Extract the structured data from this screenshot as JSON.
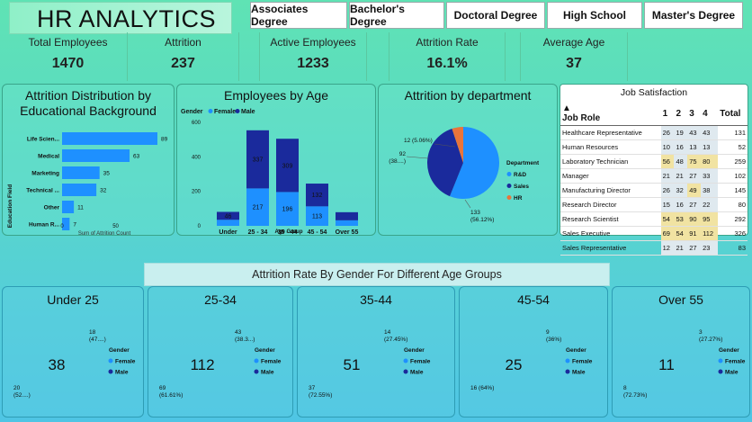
{
  "header": {
    "title": "HR ANALYTICS"
  },
  "slicers": [
    "Associates Degree",
    "Bachelor's Degree",
    "Doctoral Degree",
    "High School",
    "Master's Degree"
  ],
  "kpis": [
    {
      "label": "Total Employees",
      "value": "1470"
    },
    {
      "label": "Attrition",
      "value": "237"
    },
    {
      "label": "Active Employees",
      "value": "1233"
    },
    {
      "label": "Attrition Rate",
      "value": "16.1%"
    },
    {
      "label": "Average Age",
      "value": "37"
    }
  ],
  "edu_title": "Attrition Distribution by Educational Background",
  "edu_ylabel": "Education Field",
  "edu_xlabel": "Sum of Attrition Count",
  "age_title": "Employees by Age",
  "age_legend": {
    "title": "Gender",
    "female": "Female",
    "male": "Male"
  },
  "age_xlabel": "Age Group",
  "dept_title": "Attrition by department",
  "dept_legend": {
    "title": "Department",
    "items": [
      "R&D",
      "Sales",
      "HR"
    ]
  },
  "job": {
    "title": "Job Satisfaction",
    "headers": [
      "Job Role",
      "1",
      "2",
      "3",
      "4",
      "Total"
    ],
    "rows": [
      [
        "Healthcare Representative",
        "26",
        "19",
        "43",
        "43",
        "131"
      ],
      [
        "Human Resources",
        "10",
        "16",
        "13",
        "13",
        "52"
      ],
      [
        "Laboratory Technician",
        "56",
        "48",
        "75",
        "80",
        "259"
      ],
      [
        "Manager",
        "21",
        "21",
        "27",
        "33",
        "102"
      ],
      [
        "Manufacturing Director",
        "26",
        "32",
        "49",
        "38",
        "145"
      ],
      [
        "Research Director",
        "15",
        "16",
        "27",
        "22",
        "80"
      ],
      [
        "Research Scientist",
        "54",
        "53",
        "90",
        "95",
        "292"
      ],
      [
        "Sales Executive",
        "69",
        "54",
        "91",
        "112",
        "326"
      ],
      [
        "Sales Representative",
        "12",
        "21",
        "27",
        "23",
        "83"
      ]
    ]
  },
  "banner": "Attrition Rate By Gender For Different Age Groups",
  "donut_legend": {
    "title": "Gender",
    "female": "Female",
    "male": "Male"
  },
  "colors": {
    "female": "#1e90ff",
    "male": "#1a2a9c",
    "hr": "#e8743b",
    "hi": "#f2e6a0",
    "lo": "#dde8f0"
  },
  "chart_data": [
    {
      "type": "bar",
      "orientation": "horizontal",
      "title": "Attrition Distribution by Educational Background",
      "categories": [
        "Life Scien...",
        "Medical",
        "Marketing",
        "Technical ...",
        "Other",
        "Human R..."
      ],
      "values": [
        89,
        63,
        35,
        32,
        11,
        7
      ],
      "xlabel": "Sum of Attrition Count",
      "ylabel": "Education Field",
      "xticks": [
        "0",
        "50"
      ],
      "xlim": [
        0,
        100
      ]
    },
    {
      "type": "bar",
      "stacked": true,
      "title": "Employees by Age",
      "categories": [
        "Under 25",
        "25 - 34",
        "35 - 44",
        "45 - 54",
        "Over 55"
      ],
      "series": [
        {
          "name": "Female",
          "values": [
            35,
            217,
            196,
            113,
            32
          ]
        },
        {
          "name": "Male",
          "values": [
            46,
            337,
            309,
            132,
            47
          ]
        }
      ],
      "data_labels": [
        [
          "",
          "217",
          "196",
          "113",
          ""
        ],
        [
          "46",
          "337",
          "309",
          "132",
          ""
        ]
      ],
      "ylim": [
        0,
        600
      ],
      "yticks": [
        "0",
        "200",
        "400",
        "600"
      ],
      "xlabel": "Age Group"
    },
    {
      "type": "pie",
      "title": "Attrition by department",
      "labels": [
        "R&D",
        "Sales",
        "HR"
      ],
      "values": [
        133,
        92,
        12
      ],
      "slice_labels": [
        "133\n(56.12%)",
        "92\n(38....)",
        "12 (5.06%)"
      ]
    },
    {
      "type": "pie",
      "donut": true,
      "title": "Under 25",
      "center": "38",
      "labels": [
        "Female",
        "Male"
      ],
      "values": [
        18,
        20
      ],
      "slice_labels": [
        "18\n(47....)",
        "20\n(52....)"
      ]
    },
    {
      "type": "pie",
      "donut": true,
      "title": "25-34",
      "center": "112",
      "labels": [
        "Female",
        "Male"
      ],
      "values": [
        43,
        69
      ],
      "slice_labels": [
        "43\n(38.3...)",
        "69\n(61.61%)"
      ]
    },
    {
      "type": "pie",
      "donut": true,
      "title": "35-44",
      "center": "51",
      "labels": [
        "Female",
        "Male"
      ],
      "values": [
        14,
        37
      ],
      "slice_labels": [
        "14\n(27.45%)",
        "37\n(72.55%)"
      ]
    },
    {
      "type": "pie",
      "donut": true,
      "title": "45-54",
      "center": "25",
      "labels": [
        "Female",
        "Male"
      ],
      "values": [
        9,
        16
      ],
      "slice_labels": [
        "9\n(36%)",
        "16 (64%)"
      ]
    },
    {
      "type": "pie",
      "donut": true,
      "title": "Over 55",
      "center": "11",
      "labels": [
        "Female",
        "Male"
      ],
      "values": [
        3,
        8
      ],
      "slice_labels": [
        "3\n(27.27%)",
        "8\n(72.73%)"
      ]
    }
  ]
}
